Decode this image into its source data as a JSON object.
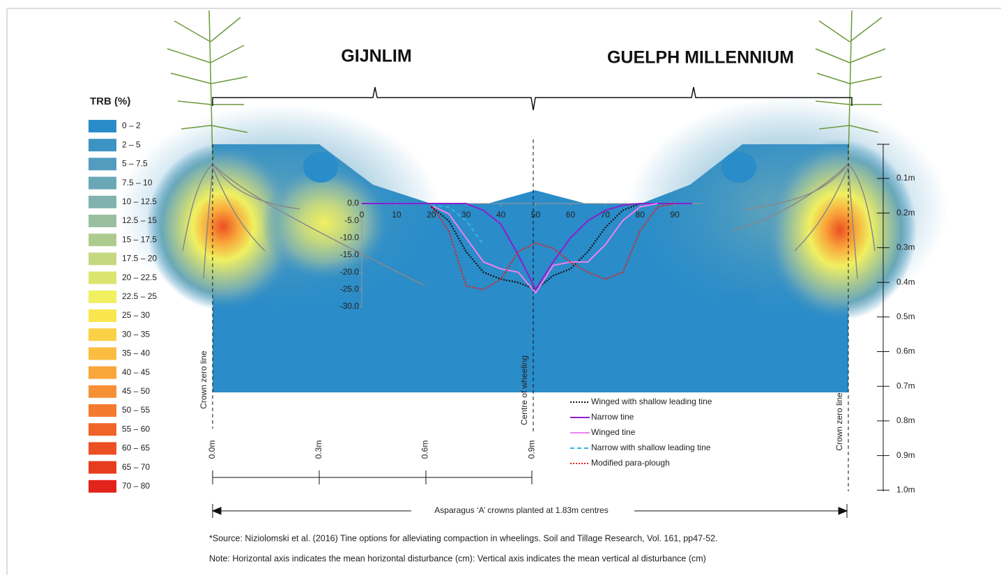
{
  "titles": {
    "left": "GIJNLIM",
    "right": "GUELPH MILLENNIUM"
  },
  "legend": {
    "title": "TRB (%)",
    "items": [
      {
        "label": "0 – 2",
        "color": "#2a8cc8"
      },
      {
        "label": "2 – 5",
        "color": "#3c93c4"
      },
      {
        "label": "5 – 7.5",
        "color": "#549cbf"
      },
      {
        "label": "7.5 – 10",
        "color": "#6aa8b8"
      },
      {
        "label": "10 – 12.5",
        "color": "#80b3ad"
      },
      {
        "label": "12.5 – 15",
        "color": "#98bf9f"
      },
      {
        "label": "15 – 17.5",
        "color": "#aecb8f"
      },
      {
        "label": "17.5 – 20",
        "color": "#c5d880"
      },
      {
        "label": "20 – 22.5",
        "color": "#dbe46f"
      },
      {
        "label": "22.5 – 25",
        "color": "#f0f060"
      },
      {
        "label": "25 – 30",
        "color": "#f9e64f"
      },
      {
        "label": "30 – 35",
        "color": "#fbd145"
      },
      {
        "label": "35 – 40",
        "color": "#fbbd40"
      },
      {
        "label": "40 – 45",
        "color": "#f9a63a"
      },
      {
        "label": "45 – 50",
        "color": "#f79034"
      },
      {
        "label": "50 – 55",
        "color": "#f47a2e"
      },
      {
        "label": "55 – 60",
        "color": "#f06428"
      },
      {
        "label": "60 – 65",
        "color": "#ec4f22"
      },
      {
        "label": "65 – 70",
        "color": "#e83c1e"
      },
      {
        "label": "70 – 80",
        "color": "#e3241a"
      }
    ]
  },
  "depth_labels": [
    "0.1m",
    "0.2m",
    "0.3m",
    "0.4m",
    "0.5m",
    "0.6m",
    "0.7m",
    "0.8m",
    "0.9m",
    "1.0m"
  ],
  "width_labels": [
    "0.0m",
    "0.3m",
    "0.6m",
    "0.9m"
  ],
  "annotations": {
    "crown_left": "Crown zero line",
    "crown_right": "Crown zero line",
    "centre": "Centre of wheeling",
    "spacing": "Asparagus ‘A’ crowns planted at 1.83m centres"
  },
  "notes": [
    "*Source: Niziolomski et al. (2016) Tine options for alleviating compaction in wheelings. Soil and Tillage Research, Vol. 161, pp47-52.",
    "Note: Horizontal axis indicates the mean horizontal disturbance (cm): Vertical axis indicates the mean vertical al disturbance (cm)"
  ],
  "chart_data": {
    "type": "line",
    "x": [
      0,
      5,
      10,
      15,
      20,
      25,
      30,
      35,
      40,
      45,
      50,
      55,
      60,
      65,
      70,
      75,
      80,
      85,
      90,
      95
    ],
    "xlim": [
      -2,
      98
    ],
    "xticks": [
      0,
      10,
      20,
      30,
      40,
      50,
      60,
      70,
      80,
      90
    ],
    "ylim": [
      -30,
      0
    ],
    "yticks": [
      {
        "value": 0,
        "label": "0.0"
      },
      {
        "value": -5,
        "label": "-5.0"
      },
      {
        "value": -10,
        "label": "-10.0"
      },
      {
        "value": -15,
        "label": "-15.0"
      },
      {
        "value": -20,
        "label": "-20.0"
      },
      {
        "value": -25,
        "label": "-25.0"
      },
      {
        "value": -30,
        "label": "-30.0"
      }
    ],
    "series": [
      {
        "name": "Winged with shallow leading tine",
        "color": "#111111",
        "line_style": "dotted",
        "values": [
          null,
          null,
          null,
          null,
          -1,
          -5,
          -14,
          -20,
          -22,
          -23,
          -25,
          -21,
          -19,
          -14,
          -7,
          -2,
          0,
          null,
          null,
          null
        ]
      },
      {
        "name": "Narrow tine",
        "color": "#8a1fd0",
        "line_style": "solid",
        "values": [
          0,
          0,
          0,
          0,
          0,
          0,
          0,
          -2,
          -6,
          -15,
          -25,
          -17,
          -10,
          -5,
          -2,
          -0.5,
          0,
          0,
          0,
          0
        ]
      },
      {
        "name": "Winged tine",
        "color": "#ee82ee",
        "line_style": "solid",
        "values": [
          null,
          null,
          null,
          null,
          -0.5,
          -3,
          -10,
          -17,
          -19,
          -20,
          -26,
          -18,
          -17,
          -17,
          -12,
          -5,
          -1,
          0,
          null,
          null
        ]
      },
      {
        "name": "Narrow with shallow leading tine",
        "color": "#2fb5e8",
        "line_style": "dashed",
        "values": [
          -0.5,
          null,
          null,
          null,
          -0.5,
          -1,
          -5,
          -12,
          null,
          null,
          null,
          null,
          null,
          null,
          null,
          null,
          null,
          null,
          null,
          null
        ]
      },
      {
        "name": "Modified para-plough",
        "color": "#e02020",
        "line_style": "dotted",
        "values": [
          null,
          null,
          null,
          null,
          -0.5,
          -8,
          -24,
          -25,
          -22,
          -14,
          -11.5,
          -13,
          -17,
          -20,
          -22,
          -20,
          -8,
          -1,
          0,
          null
        ]
      }
    ]
  }
}
